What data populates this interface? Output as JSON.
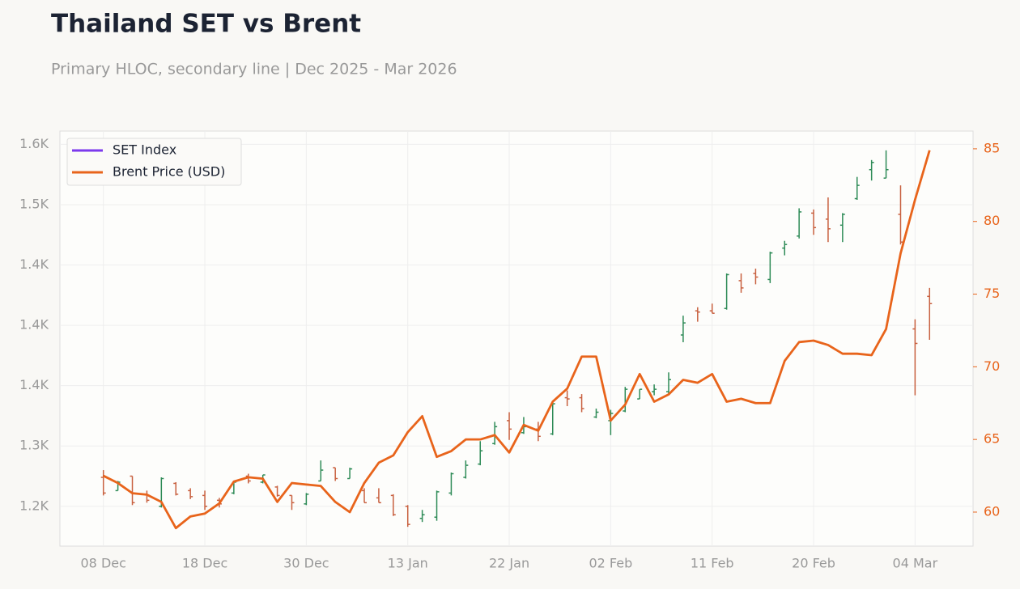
{
  "chart_data": {
    "type": "hloc",
    "title": "Thailand SET vs Brent",
    "subtitle": "Primary HLOC, secondary line | Dec 2025 - Mar 2026",
    "categories": [
      "08 Dec",
      null,
      null,
      null,
      null,
      null,
      null,
      "18 Dec",
      null,
      null,
      null,
      null,
      null,
      null,
      "30 Dec",
      null,
      null,
      null,
      null,
      null,
      null,
      "13 Jan",
      null,
      null,
      null,
      null,
      null,
      null,
      "22 Jan",
      null,
      null,
      null,
      null,
      null,
      null,
      "02 Feb",
      null,
      null,
      null,
      null,
      null,
      null,
      "11 Feb",
      null,
      null,
      null,
      null,
      null,
      null,
      "20 Feb",
      null,
      null,
      null,
      null,
      null,
      null,
      "04 Mar",
      null
    ],
    "up_color": "#2e8b57",
    "down_color": "#c8603f",
    "series": [
      {
        "name": "SET Index",
        "color": "#7c3aed",
        "open": [
          1274,
          1263,
          1275,
          1260,
          1250,
          1269,
          1263,
          1259,
          1255,
          1261,
          1275,
          1270,
          1266,
          1259,
          1252,
          1271,
          1282,
          1273,
          1263,
          1257,
          1259,
          1250,
          1240,
          1241,
          1261,
          1274,
          1285,
          1302,
          1321,
          1311,
          1314,
          1310,
          1340,
          1340,
          1324,
          1321,
          1329,
          1339,
          1345,
          1345,
          1392,
          1412,
          1412,
          1414,
          1437,
          1443,
          1438,
          1464,
          1474,
          1493,
          1488,
          1483,
          1505,
          1529,
          1522,
          1492,
          1397,
          1424
        ],
        "high": [
          1280,
          1271,
          1275,
          1263,
          1274,
          1270,
          1265,
          1263,
          1257,
          1271,
          1277,
          1276,
          1267,
          1259,
          1261,
          1288,
          1282,
          1282,
          1265,
          1265,
          1260,
          1251,
          1247,
          1263,
          1278,
          1288,
          1304,
          1320,
          1328,
          1324,
          1320,
          1335,
          1346,
          1343,
          1331,
          1330,
          1349,
          1347,
          1351,
          1361,
          1408,
          1415,
          1418,
          1443,
          1443,
          1447,
          1461,
          1470,
          1497,
          1496,
          1506,
          1493,
          1523,
          1537,
          1545,
          1516,
          1405,
          1431
        ],
        "low": [
          1259,
          1263,
          1251,
          1253,
          1249,
          1259,
          1256,
          1247,
          1249,
          1260,
          1269,
          1269,
          1258,
          1247,
          1251,
          1271,
          1271,
          1273,
          1253,
          1253,
          1242,
          1233,
          1237,
          1238,
          1259,
          1273,
          1284,
          1301,
          1305,
          1310,
          1304,
          1309,
          1333,
          1328,
          1323,
          1309,
          1328,
          1339,
          1342,
          1343,
          1386,
          1403,
          1410,
          1413,
          1427,
          1434,
          1435,
          1458,
          1472,
          1475,
          1469,
          1469,
          1504,
          1520,
          1522,
          1467,
          1342,
          1388
        ],
        "close": [
          1261,
          1270,
          1253,
          1255,
          1273,
          1260,
          1258,
          1250,
          1252,
          1270,
          1271,
          1276,
          1259,
          1253,
          1260,
          1280,
          1273,
          1281,
          1253,
          1253,
          1243,
          1235,
          1243,
          1262,
          1277,
          1284,
          1296,
          1316,
          1314,
          1316,
          1308,
          1335,
          1339,
          1331,
          1328,
          1327,
          1347,
          1347,
          1347,
          1355,
          1402,
          1411,
          1410,
          1442,
          1431,
          1440,
          1460,
          1467,
          1494,
          1481,
          1480,
          1492,
          1516,
          1535,
          1529,
          1469,
          1385,
          1418
        ]
      },
      {
        "name": "Brent Price (USD)",
        "color": "#e8641b",
        "axis": "y2",
        "values": [
          62.5,
          62.0,
          61.3,
          61.2,
          60.7,
          58.9,
          59.7,
          59.9,
          60.6,
          62.1,
          62.4,
          62.3,
          60.7,
          62.0,
          61.9,
          61.8,
          60.7,
          60.0,
          62.0,
          63.4,
          63.9,
          65.5,
          66.6,
          63.8,
          64.2,
          65.0,
          65.0,
          65.3,
          64.1,
          66.0,
          65.6,
          67.6,
          68.5,
          70.7,
          70.7,
          66.3,
          67.4,
          69.5,
          67.6,
          68.1,
          69.1,
          68.9,
          69.5,
          67.6,
          67.8,
          67.5,
          67.5,
          70.4,
          71.7,
          71.8,
          71.5,
          70.9,
          70.9,
          70.8,
          72.6,
          77.8,
          81.5,
          84.9
        ]
      }
    ],
    "ylim": [
      1217,
      1561
    ],
    "yticks": [
      {
        "value": 1250,
        "label": "1.2K"
      },
      {
        "value": 1300,
        "label": "1.3K"
      },
      {
        "value": 1350,
        "label": "1.4K"
      },
      {
        "value": 1400,
        "label": "1.4K"
      },
      {
        "value": 1450,
        "label": "1.4K"
      },
      {
        "value": 1500,
        "label": "1.5K"
      },
      {
        "value": 1550,
        "label": "1.6K"
      }
    ],
    "y2lim": [
      57.66,
      86.22
    ],
    "y2ticks": [
      60,
      65,
      70,
      75,
      80,
      85
    ],
    "grid": true,
    "legend": "upper left"
  }
}
